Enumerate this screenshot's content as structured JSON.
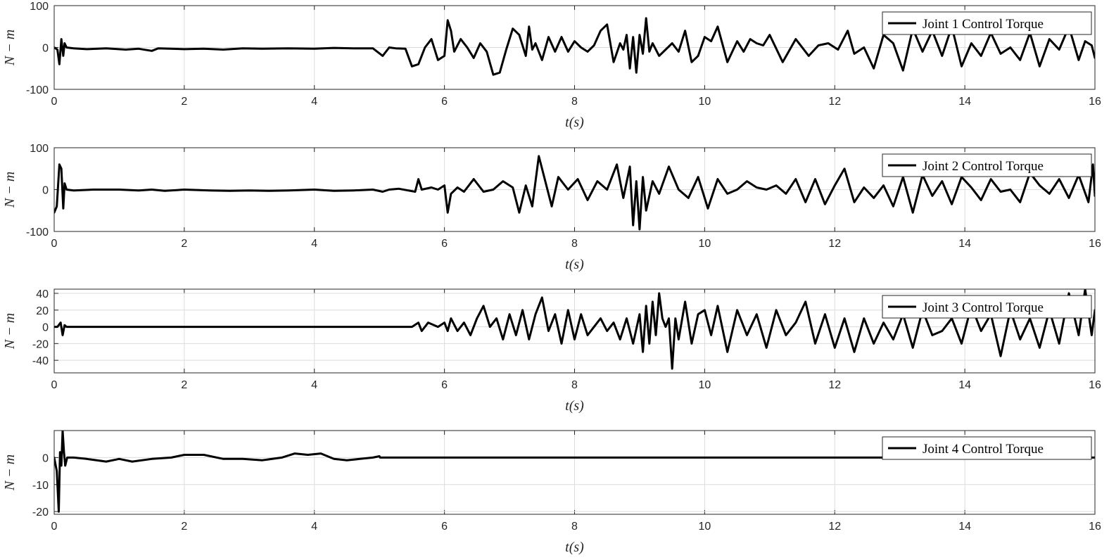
{
  "chart_data": [
    {
      "type": "line",
      "xlabel": "t(s)",
      "ylabel": "N − m",
      "xlim": [
        0,
        16
      ],
      "ylim": [
        -100,
        100
      ],
      "xticks": [
        0,
        2,
        4,
        6,
        8,
        10,
        12,
        14,
        16
      ],
      "yticks": [
        -100,
        0,
        100
      ],
      "grid": true,
      "legend_position": "top-right",
      "series": [
        {
          "name": "Joint 1 Control Torque",
          "x": [
            0,
            0.05,
            0.08,
            0.11,
            0.14,
            0.16,
            0.19,
            0.3,
            0.5,
            0.8,
            1.1,
            1.3,
            1.5,
            1.6,
            2.0,
            2.3,
            2.6,
            2.9,
            3.2,
            3.6,
            4.0,
            4.3,
            4.6,
            4.9,
            5.05,
            5.15,
            5.25,
            5.4,
            5.5,
            5.6,
            5.7,
            5.8,
            5.9,
            6.0,
            6.05,
            6.1,
            6.15,
            6.25,
            6.35,
            6.45,
            6.55,
            6.65,
            6.75,
            6.85,
            6.95,
            7.05,
            7.15,
            7.25,
            7.3,
            7.35,
            7.4,
            7.5,
            7.6,
            7.7,
            7.8,
            7.9,
            8.0,
            8.1,
            8.2,
            8.3,
            8.4,
            8.5,
            8.6,
            8.7,
            8.75,
            8.8,
            8.85,
            8.9,
            8.95,
            9.0,
            9.05,
            9.1,
            9.15,
            9.2,
            9.3,
            9.4,
            9.5,
            9.6,
            9.7,
            9.8,
            9.9,
            10.0,
            10.1,
            10.2,
            10.35,
            10.5,
            10.6,
            10.7,
            10.8,
            10.9,
            11.0,
            11.2,
            11.4,
            11.6,
            11.75,
            11.9,
            12.05,
            12.2,
            12.3,
            12.45,
            12.6,
            12.75,
            12.9,
            13.05,
            13.2,
            13.35,
            13.5,
            13.65,
            13.8,
            13.95,
            14.1,
            14.25,
            14.4,
            14.55,
            14.7,
            14.85,
            15.0,
            15.15,
            15.3,
            15.45,
            15.6,
            15.75,
            15.85,
            15.95,
            16.0
          ],
          "y": [
            0,
            -5,
            -40,
            20,
            -20,
            10,
            0,
            -2,
            -4,
            -2,
            -5,
            -3,
            -8,
            -2,
            -4,
            -3,
            -5,
            -2,
            -3,
            -2,
            -3,
            -1,
            -2,
            -2,
            -20,
            0,
            -2,
            -3,
            -45,
            -40,
            0,
            20,
            -30,
            -20,
            65,
            40,
            -10,
            20,
            0,
            -25,
            10,
            -10,
            -65,
            -60,
            -5,
            45,
            30,
            -20,
            50,
            -5,
            10,
            -30,
            25,
            -10,
            25,
            -10,
            15,
            0,
            -10,
            5,
            40,
            55,
            -35,
            10,
            -5,
            30,
            -50,
            25,
            -60,
            30,
            -15,
            70,
            -10,
            10,
            -20,
            -5,
            10,
            -10,
            40,
            -35,
            -20,
            25,
            15,
            50,
            -35,
            15,
            -10,
            20,
            10,
            5,
            30,
            -35,
            20,
            -20,
            5,
            10,
            -5,
            40,
            -15,
            0,
            -50,
            30,
            10,
            -55,
            45,
            -10,
            40,
            -20,
            50,
            -45,
            10,
            -20,
            35,
            -15,
            0,
            -30,
            35,
            -45,
            20,
            -5,
            50,
            -30,
            15,
            5,
            -25
          ]
        }
      ]
    },
    {
      "type": "line",
      "xlabel": "t(s)",
      "ylabel": "N − m",
      "xlim": [
        0,
        16
      ],
      "ylim": [
        -100,
        100
      ],
      "xticks": [
        0,
        2,
        4,
        6,
        8,
        10,
        12,
        14,
        16
      ],
      "yticks": [
        -100,
        0,
        100
      ],
      "grid": true,
      "legend_position": "top-right",
      "series": [
        {
          "name": "Joint 2 Control Torque",
          "x": [
            0,
            0.04,
            0.08,
            0.11,
            0.14,
            0.16,
            0.19,
            0.3,
            0.6,
            1.0,
            1.3,
            1.5,
            1.7,
            2.0,
            2.4,
            2.7,
            3.0,
            3.3,
            3.6,
            4.0,
            4.3,
            4.6,
            4.9,
            5.05,
            5.15,
            5.3,
            5.55,
            5.6,
            5.65,
            5.8,
            5.9,
            6.0,
            6.05,
            6.1,
            6.2,
            6.3,
            6.45,
            6.6,
            6.75,
            6.9,
            7.05,
            7.15,
            7.25,
            7.35,
            7.45,
            7.55,
            7.65,
            7.75,
            7.9,
            8.05,
            8.2,
            8.35,
            8.5,
            8.65,
            8.75,
            8.85,
            8.9,
            8.95,
            9.0,
            9.05,
            9.1,
            9.2,
            9.3,
            9.45,
            9.6,
            9.75,
            9.9,
            10.05,
            10.2,
            10.35,
            10.5,
            10.65,
            10.8,
            10.95,
            11.1,
            11.25,
            11.4,
            11.55,
            11.7,
            11.85,
            12.0,
            12.15,
            12.3,
            12.45,
            12.6,
            12.75,
            12.9,
            13.05,
            13.2,
            13.35,
            13.5,
            13.65,
            13.8,
            13.95,
            14.1,
            14.25,
            14.4,
            14.55,
            14.7,
            14.85,
            15.0,
            15.15,
            15.3,
            15.45,
            15.6,
            15.75,
            15.9,
            15.97,
            16.0
          ],
          "y": [
            -55,
            -40,
            60,
            50,
            -45,
            15,
            0,
            -2,
            0,
            0,
            -2,
            0,
            -3,
            0,
            -2,
            -3,
            -2,
            -3,
            -2,
            0,
            -3,
            -2,
            0,
            -5,
            0,
            2,
            -5,
            25,
            0,
            5,
            0,
            10,
            -55,
            -10,
            5,
            -5,
            25,
            -5,
            0,
            20,
            5,
            -55,
            10,
            -40,
            80,
            20,
            -40,
            30,
            0,
            25,
            -25,
            20,
            0,
            60,
            -20,
            55,
            -85,
            20,
            -95,
            30,
            -50,
            20,
            -10,
            55,
            0,
            -20,
            30,
            -45,
            25,
            -10,
            0,
            20,
            5,
            0,
            10,
            -10,
            25,
            -30,
            25,
            -35,
            10,
            50,
            -30,
            5,
            -20,
            10,
            -40,
            30,
            -55,
            35,
            -15,
            20,
            -35,
            30,
            5,
            -25,
            25,
            -5,
            0,
            -30,
            40,
            10,
            -10,
            25,
            -20,
            35,
            -30,
            60,
            -15
          ]
        }
      ]
    },
    {
      "type": "line",
      "xlabel": "t(s)",
      "ylabel": "N − m",
      "xlim": [
        0,
        16
      ],
      "ylim": [
        -55,
        45
      ],
      "xticks": [
        0,
        2,
        4,
        6,
        8,
        10,
        12,
        14,
        16
      ],
      "yticks": [
        -40,
        -20,
        0,
        20,
        40
      ],
      "grid": true,
      "legend_position": "top-right",
      "series": [
        {
          "name": "Joint 3 Control Torque",
          "x": [
            0,
            0.05,
            0.1,
            0.13,
            0.16,
            0.19,
            0.3,
            0.6,
            1.0,
            1.5,
            2.0,
            2.5,
            3.0,
            3.5,
            4.0,
            4.5,
            5.0,
            5.5,
            5.6,
            5.65,
            5.75,
            5.9,
            6.0,
            6.05,
            6.1,
            6.2,
            6.3,
            6.4,
            6.5,
            6.6,
            6.7,
            6.8,
            6.9,
            7.0,
            7.1,
            7.2,
            7.3,
            7.4,
            7.5,
            7.6,
            7.7,
            7.8,
            7.9,
            8.0,
            8.1,
            8.2,
            8.3,
            8.4,
            8.5,
            8.6,
            8.7,
            8.8,
            8.9,
            9.0,
            9.05,
            9.1,
            9.15,
            9.2,
            9.25,
            9.3,
            9.35,
            9.4,
            9.45,
            9.5,
            9.55,
            9.6,
            9.7,
            9.8,
            9.9,
            10.0,
            10.1,
            10.2,
            10.35,
            10.5,
            10.65,
            10.8,
            10.95,
            11.1,
            11.25,
            11.4,
            11.55,
            11.7,
            11.85,
            12.0,
            12.15,
            12.3,
            12.45,
            12.6,
            12.75,
            12.9,
            13.05,
            13.2,
            13.35,
            13.5,
            13.65,
            13.8,
            13.95,
            14.1,
            14.25,
            14.4,
            14.55,
            14.7,
            14.85,
            15.0,
            15.15,
            15.3,
            15.45,
            15.6,
            15.75,
            15.85,
            15.95,
            16.0
          ],
          "y": [
            0,
            0,
            5,
            -10,
            2,
            0,
            0,
            0,
            0,
            0,
            0,
            0,
            0,
            0,
            0,
            0,
            0,
            0,
            5,
            -5,
            5,
            0,
            5,
            -5,
            10,
            -5,
            5,
            -10,
            10,
            25,
            0,
            10,
            -15,
            15,
            -10,
            20,
            -15,
            15,
            35,
            -5,
            15,
            -20,
            20,
            -15,
            15,
            -10,
            0,
            10,
            -5,
            5,
            -15,
            10,
            -20,
            15,
            -30,
            25,
            -20,
            30,
            -10,
            40,
            10,
            0,
            10,
            -50,
            10,
            -15,
            30,
            -20,
            15,
            20,
            -10,
            25,
            -30,
            20,
            -10,
            15,
            -25,
            20,
            -10,
            5,
            30,
            -20,
            15,
            -25,
            10,
            -30,
            10,
            -20,
            5,
            -15,
            15,
            -25,
            20,
            -10,
            -5,
            10,
            -20,
            25,
            -5,
            15,
            -35,
            20,
            -15,
            10,
            -25,
            20,
            -20,
            40,
            -10,
            45,
            -10,
            20
          ]
        }
      ]
    },
    {
      "type": "line",
      "xlabel": "t(s)",
      "ylabel": "N − m",
      "xlim": [
        0,
        16
      ],
      "ylim": [
        -21,
        10
      ],
      "xticks": [
        0,
        2,
        4,
        6,
        8,
        10,
        12,
        14,
        16
      ],
      "yticks": [
        -20,
        -10,
        0
      ],
      "grid": true,
      "legend_position": "top-right",
      "series": [
        {
          "name": "Joint 4 Control Torque",
          "x": [
            0,
            0.04,
            0.07,
            0.09,
            0.11,
            0.13,
            0.15,
            0.17,
            0.2,
            0.3,
            0.5,
            0.8,
            1.0,
            1.2,
            1.5,
            1.8,
            2.0,
            2.3,
            2.6,
            2.9,
            3.2,
            3.5,
            3.7,
            3.9,
            4.1,
            4.3,
            4.5,
            4.7,
            4.9,
            5.0,
            5.01,
            6.0,
            8.0,
            10.0,
            12.0,
            14.0,
            16.0
          ],
          "y": [
            0,
            -5,
            -20,
            2,
            -3,
            10,
            2,
            -3,
            0,
            0,
            -0.5,
            -1.5,
            -0.5,
            -1.5,
            -0.5,
            0,
            1,
            1,
            -0.5,
            -0.5,
            -1,
            0,
            1.5,
            1,
            1.5,
            -0.5,
            -1,
            -0.5,
            0,
            0.5,
            0,
            0,
            0,
            0,
            0,
            0,
            0
          ]
        }
      ]
    }
  ]
}
